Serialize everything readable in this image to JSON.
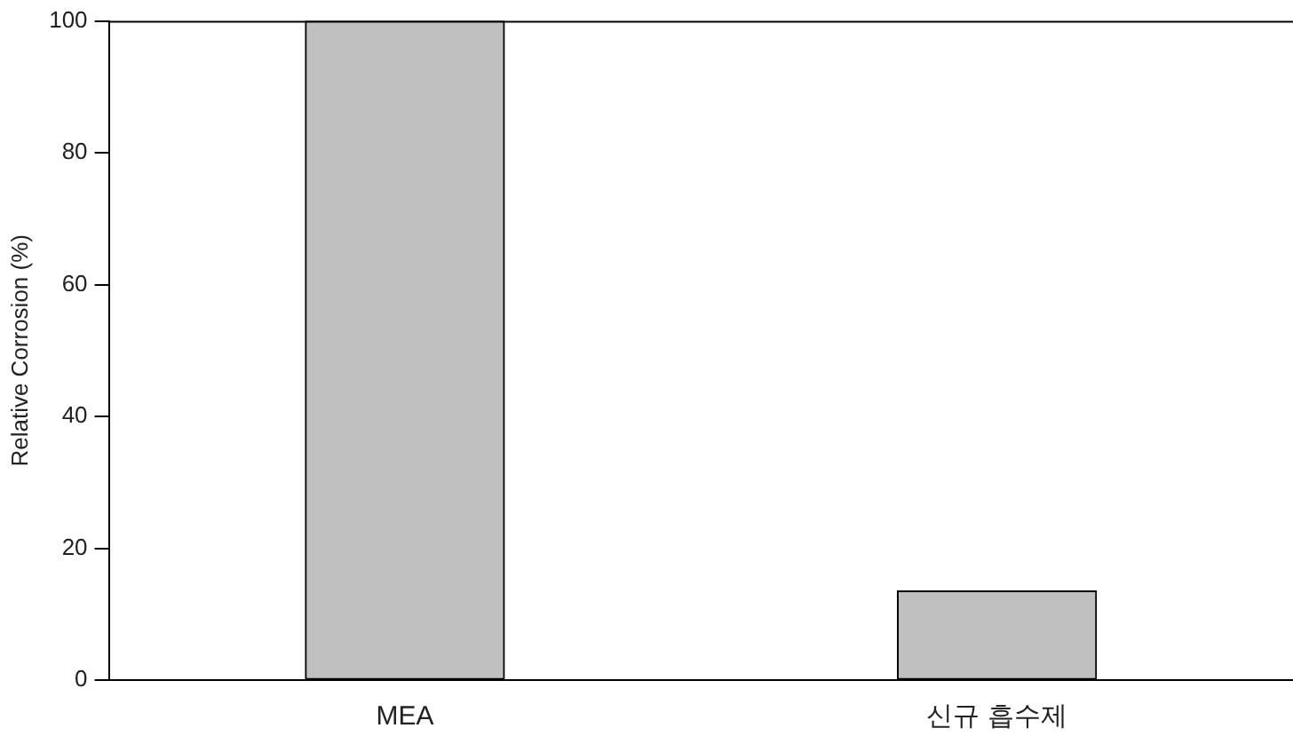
{
  "chart_data": {
    "type": "bar",
    "ylabel": "Relative Corrosion (%)",
    "categories": [
      "MEA",
      "신규 흡수제"
    ],
    "values": [
      100,
      13.5
    ],
    "color": "#c0c0c0",
    "ylim": [
      0,
      100
    ],
    "yticks": [
      0,
      20,
      40,
      60,
      80,
      100
    ],
    "grid": false,
    "legend": false
  }
}
